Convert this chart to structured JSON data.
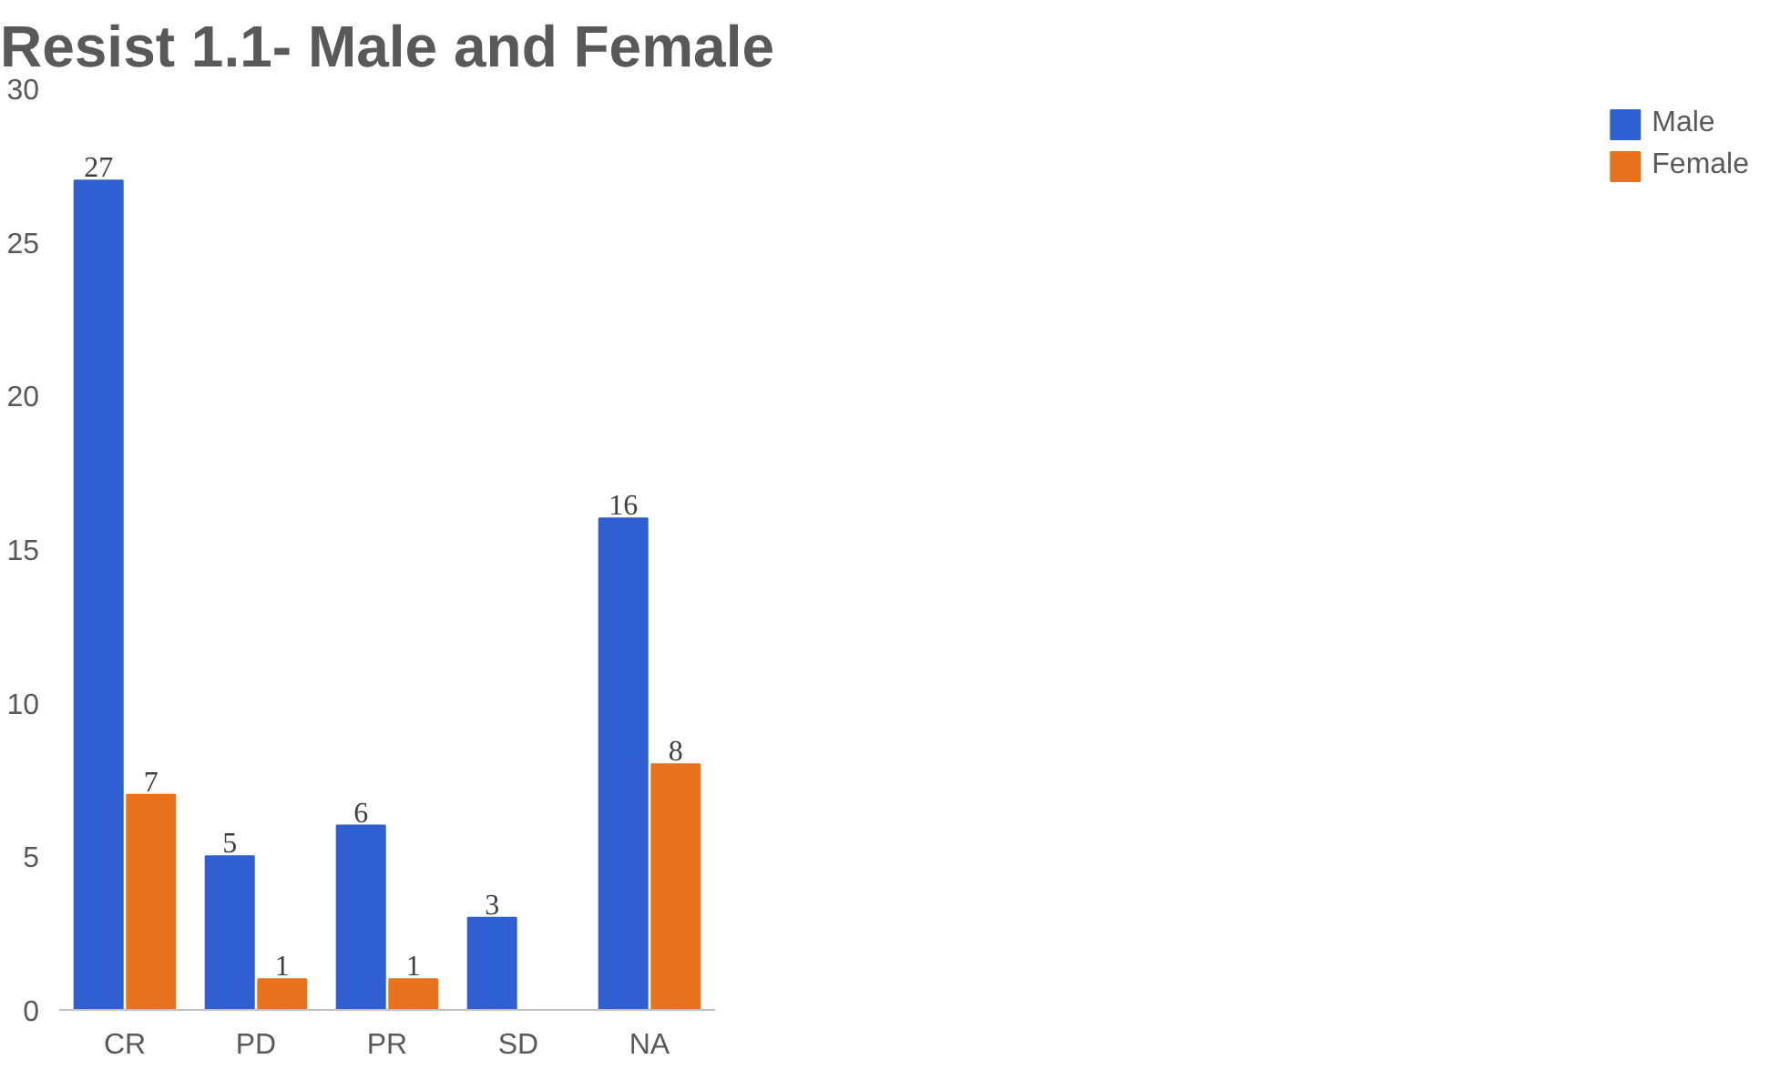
{
  "chart_data": {
    "type": "bar",
    "title": "Resist 1.1- Male and Female",
    "categories": [
      "CR",
      "PD",
      "PR",
      "SD",
      "NA"
    ],
    "series": [
      {
        "name": "Male",
        "color": "#2f5fd0",
        "values": [
          27,
          5,
          6,
          3,
          16
        ]
      },
      {
        "name": "Female",
        "color": "#e8721e",
        "values": [
          7,
          1,
          1,
          null,
          8
        ]
      }
    ],
    "ylim": [
      0,
      30
    ],
    "yticks": [
      0,
      5,
      10,
      15,
      20,
      25,
      30
    ],
    "data_labels": true,
    "legend": "right",
    "grid": false
  }
}
